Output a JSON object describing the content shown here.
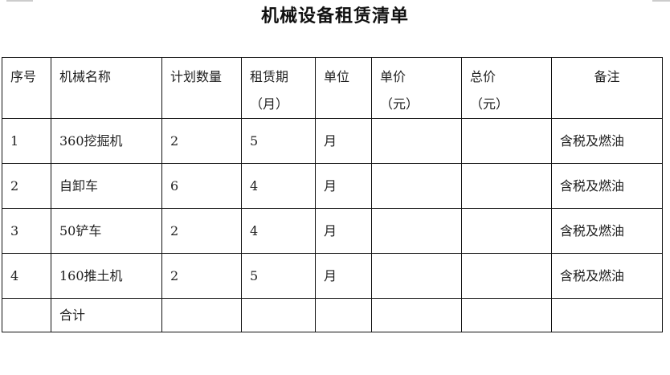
{
  "title": "机械设备租赁清单",
  "headers": [
    {
      "line1": "序号",
      "line2": ""
    },
    {
      "line1": "机械名称",
      "line2": ""
    },
    {
      "line1": "计划数量",
      "line2": ""
    },
    {
      "line1": "租赁期",
      "line2": "（月）"
    },
    {
      "line1": "单位",
      "line2": ""
    },
    {
      "line1": "单价",
      "line2": "（元）"
    },
    {
      "line1": "总价",
      "line2": "（元）"
    },
    {
      "line1": "备注",
      "line2": ""
    }
  ],
  "rows": [
    [
      "1",
      "360挖掘机",
      "2",
      "5",
      "月",
      "",
      "",
      "含税及燃油"
    ],
    [
      "2",
      "自卸车",
      "6",
      "4",
      "月",
      "",
      "",
      "含税及燃油"
    ],
    [
      "3",
      "50铲车",
      "2",
      "4",
      "月",
      "",
      "",
      "含税及燃油"
    ],
    [
      "4",
      "160推土机",
      "2",
      "5",
      "月",
      "",
      "",
      "含税及燃油"
    ]
  ],
  "total_label": "合计"
}
